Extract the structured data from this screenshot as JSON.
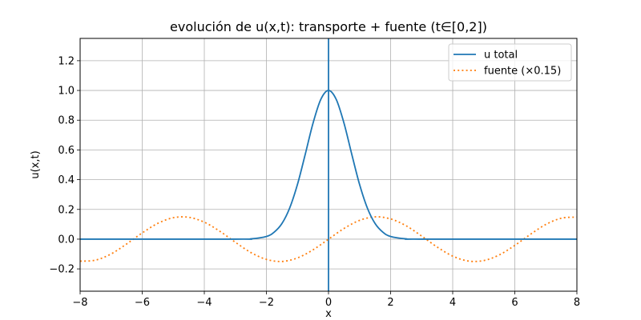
{
  "chart_data": {
    "type": "line",
    "title": "evolución de u(x,t): transporte + fuente (t∈[0,2])",
    "xlabel": "x",
    "ylabel": "u(x,t)",
    "xlim": [
      -8,
      8
    ],
    "ylim": [
      -0.35,
      1.35
    ],
    "xticks": [
      -8,
      -6,
      -4,
      -2,
      0,
      2,
      4,
      6,
      8
    ],
    "xtick_labels": [
      "−8",
      "−6",
      "−4",
      "−2",
      "0",
      "2",
      "4",
      "6",
      "8"
    ],
    "yticks": [
      -0.2,
      0.0,
      0.2,
      0.4,
      0.6,
      0.8,
      1.0,
      1.2
    ],
    "ytick_labels": [
      "−0.2",
      "0.0",
      "0.2",
      "0.4",
      "0.6",
      "0.8",
      "1.0",
      "1.2"
    ],
    "grid": true,
    "legend_position": "top-right",
    "series": [
      {
        "name": "u total",
        "style": "solid",
        "color": "#1f77b4",
        "x": [
          -8,
          -3,
          -2.5,
          -2,
          -1.75,
          -1.5,
          -1.25,
          -1,
          -0.75,
          -0.5,
          -0.25,
          0,
          0.25,
          0.5,
          0.75,
          1,
          1.25,
          1.5,
          1.75,
          2,
          2.5,
          3,
          8
        ],
        "y": [
          0,
          0.0001,
          0.002,
          0.018,
          0.047,
          0.105,
          0.21,
          0.368,
          0.57,
          0.779,
          0.939,
          1.0,
          0.939,
          0.779,
          0.57,
          0.368,
          0.21,
          0.105,
          0.047,
          0.018,
          0.002,
          0.0001,
          0
        ]
      },
      {
        "name": "fuente (×0.15)",
        "style": "dotted",
        "color": "#ff7f0e",
        "x": [
          -8,
          -7.5,
          -7,
          -6.5,
          -6,
          -5.5,
          -5,
          -4.5,
          -4,
          -3.5,
          -3,
          -2.5,
          -2,
          -1.5,
          -1,
          -0.5,
          0,
          0.5,
          1,
          1.5,
          2,
          2.5,
          3,
          3.5,
          4,
          4.5,
          5,
          5.5,
          6,
          6.5,
          7,
          7.5,
          8
        ],
        "y": [
          -0.148,
          -0.141,
          -0.099,
          -0.032,
          0.042,
          0.106,
          0.144,
          0.147,
          0.114,
          0.053,
          -0.021,
          -0.09,
          -0.136,
          -0.15,
          -0.126,
          -0.072,
          0,
          0.072,
          0.126,
          0.15,
          0.136,
          0.09,
          0.021,
          -0.053,
          -0.114,
          -0.147,
          -0.144,
          -0.106,
          -0.042,
          0.032,
          0.099,
          0.141,
          0.148
        ]
      }
    ],
    "annotations": [
      {
        "type": "vline",
        "x": 0,
        "color": "#1f77b4"
      }
    ]
  }
}
